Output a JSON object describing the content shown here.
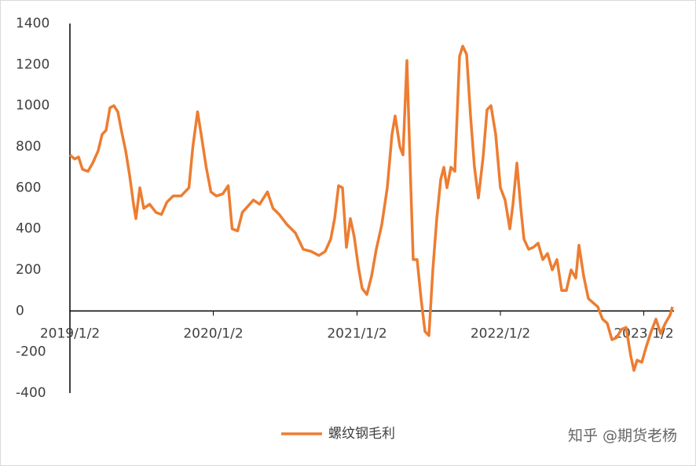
{
  "chart_data": {
    "type": "line",
    "x": [
      "2019/1/2",
      "2019/1/14",
      "2019/1/24",
      "2019/2/3",
      "2019/2/17",
      "2019/3/1",
      "2019/3/15",
      "2019/3/25",
      "2019/4/4",
      "2019/4/14",
      "2019/4/24",
      "2019/5/4",
      "2019/5/14",
      "2019/5/24",
      "2019/6/3",
      "2019/6/13",
      "2019/6/19",
      "2019/6/29",
      "2019/7/9",
      "2019/7/24",
      "2019/8/9",
      "2019/8/23",
      "2019/9/6",
      "2019/9/22",
      "2019/10/12",
      "2019/11/1",
      "2019/11/11",
      "2019/11/23",
      "2019/12/3",
      "2019/12/15",
      "2019/12/27",
      "2020/1/10",
      "2020/1/26",
      "2020/2/9",
      "2020/2/19",
      "2020/3/4",
      "2020/3/16",
      "2020/3/30",
      "2020/4/13",
      "2020/4/29",
      "2020/5/19",
      "2020/6/2",
      "2020/6/18",
      "2020/7/8",
      "2020/7/29",
      "2020/8/18",
      "2020/9/7",
      "2020/9/27",
      "2020/10/13",
      "2020/10/27",
      "2020/11/6",
      "2020/11/16",
      "2020/11/26",
      "2020/12/6",
      "2020/12/16",
      "2020/12/26",
      "2021/1/5",
      "2021/1/15",
      "2021/1/27",
      "2021/2/8",
      "2021/2/20",
      "2021/3/6",
      "2021/3/20",
      "2021/4/1",
      "2021/4/9",
      "2021/4/21",
      "2021/4/29",
      "2021/5/9",
      "2021/5/19",
      "2021/5/25",
      "2021/6/4",
      "2021/6/14",
      "2021/6/24",
      "2021/7/4",
      "2021/7/14",
      "2021/7/24",
      "2021/8/3",
      "2021/8/11",
      "2021/8/19",
      "2021/8/29",
      "2021/9/8",
      "2021/9/20",
      "2021/9/28",
      "2021/10/8",
      "2021/10/18",
      "2021/10/28",
      "2021/11/7",
      "2021/11/19",
      "2021/11/29",
      "2021/12/9",
      "2021/12/21",
      "2022/1/2",
      "2022/1/14",
      "2022/1/26",
      "2022/2/3",
      "2022/2/13",
      "2022/2/23",
      "2022/3/3",
      "2022/3/15",
      "2022/3/27",
      "2022/4/8",
      "2022/4/20",
      "2022/5/2",
      "2022/5/14",
      "2022/5/26",
      "2022/6/7",
      "2022/6/19",
      "2022/7/1",
      "2022/7/13",
      "2022/7/21",
      "2022/8/2",
      "2022/8/14",
      "2022/8/26",
      "2022/9/7",
      "2022/9/19",
      "2022/10/1",
      "2022/10/13",
      "2022/10/25",
      "2022/11/6",
      "2022/11/18",
      "2022/11/30",
      "2022/12/8",
      "2022/12/16",
      "2022/12/28",
      "2023/1/9",
      "2023/1/21",
      "2023/2/2",
      "2023/2/14",
      "2023/2/26",
      "2023/3/10",
      "2023/3/16"
    ],
    "series": [
      {
        "name": "螺纹钢毛利",
        "color": "#ed7d31",
        "values": [
          760,
          740,
          750,
          690,
          680,
          720,
          780,
          860,
          880,
          990,
          1000,
          970,
          870,
          780,
          660,
          520,
          450,
          600,
          500,
          520,
          480,
          470,
          530,
          560,
          560,
          600,
          800,
          970,
          850,
          700,
          580,
          560,
          570,
          610,
          400,
          390,
          480,
          510,
          540,
          520,
          580,
          500,
          470,
          420,
          380,
          300,
          290,
          270,
          290,
          350,
          450,
          610,
          600,
          310,
          450,
          360,
          220,
          110,
          80,
          170,
          300,
          420,
          600,
          860,
          950,
          800,
          760,
          1220,
          600,
          250,
          250,
          60,
          -100,
          -120,
          200,
          450,
          640,
          700,
          600,
          700,
          680,
          1240,
          1290,
          1250,
          950,
          700,
          550,
          750,
          980,
          1000,
          860,
          600,
          540,
          400,
          520,
          720,
          500,
          350,
          300,
          310,
          330,
          250,
          280,
          200,
          250,
          100,
          100,
          200,
          160,
          320,
          170,
          60,
          40,
          20,
          -40,
          -60,
          -140,
          -130,
          -90,
          -80,
          -220,
          -290,
          -240,
          -250,
          -170,
          -100,
          -40,
          -110,
          -60,
          -20,
          20
        ]
      }
    ],
    "xlim": [
      "2019/1/2",
      "2023/3/20"
    ],
    "xticks": [
      "2019/1/2",
      "2020/1/2",
      "2021/1/2",
      "2022/1/2",
      "2023/1/2"
    ],
    "ylim": [
      -400,
      1400
    ],
    "yticks": [
      -400,
      -200,
      0,
      200,
      400,
      600,
      800,
      1000,
      1200,
      1400
    ],
    "grid": false,
    "legend": "bottom",
    "watermark": "知乎 @期货老杨"
  }
}
